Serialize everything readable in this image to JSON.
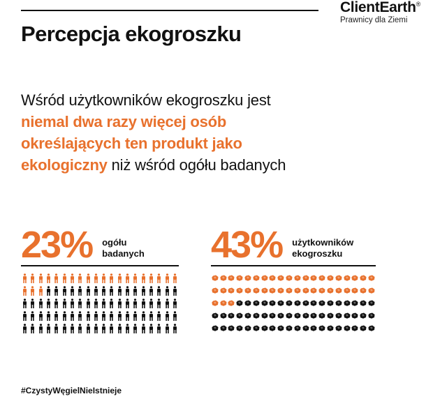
{
  "brand": {
    "name": "ClientEarth",
    "registered": "®",
    "tagline": "Prawnicy dla Ziemi"
  },
  "title": "Percepcja ekogroszku",
  "lead": {
    "part1": "Wśród użytkowników ekogroszku jest ",
    "highlight": "niemal dwa razy więcej osób określających ten produkt jako ekologiczny",
    "part2": " niż wśród ogółu badanych"
  },
  "stats": [
    {
      "value": "23%",
      "label_line1": "ogółu",
      "label_line2": "badanych",
      "highlighted_count": 23,
      "total_count": 100,
      "icon": "person-icon"
    },
    {
      "value": "43%",
      "label_line1": "użytkowników",
      "label_line2": "ekogroszku",
      "highlighted_count": 43,
      "total_count": 100,
      "icon": "coal-icon"
    }
  ],
  "hashtag": "#CzystyWęgielNieIstnieje",
  "colors": {
    "accent": "#e8712d",
    "dark": "#111111",
    "background": "#ffffff"
  }
}
